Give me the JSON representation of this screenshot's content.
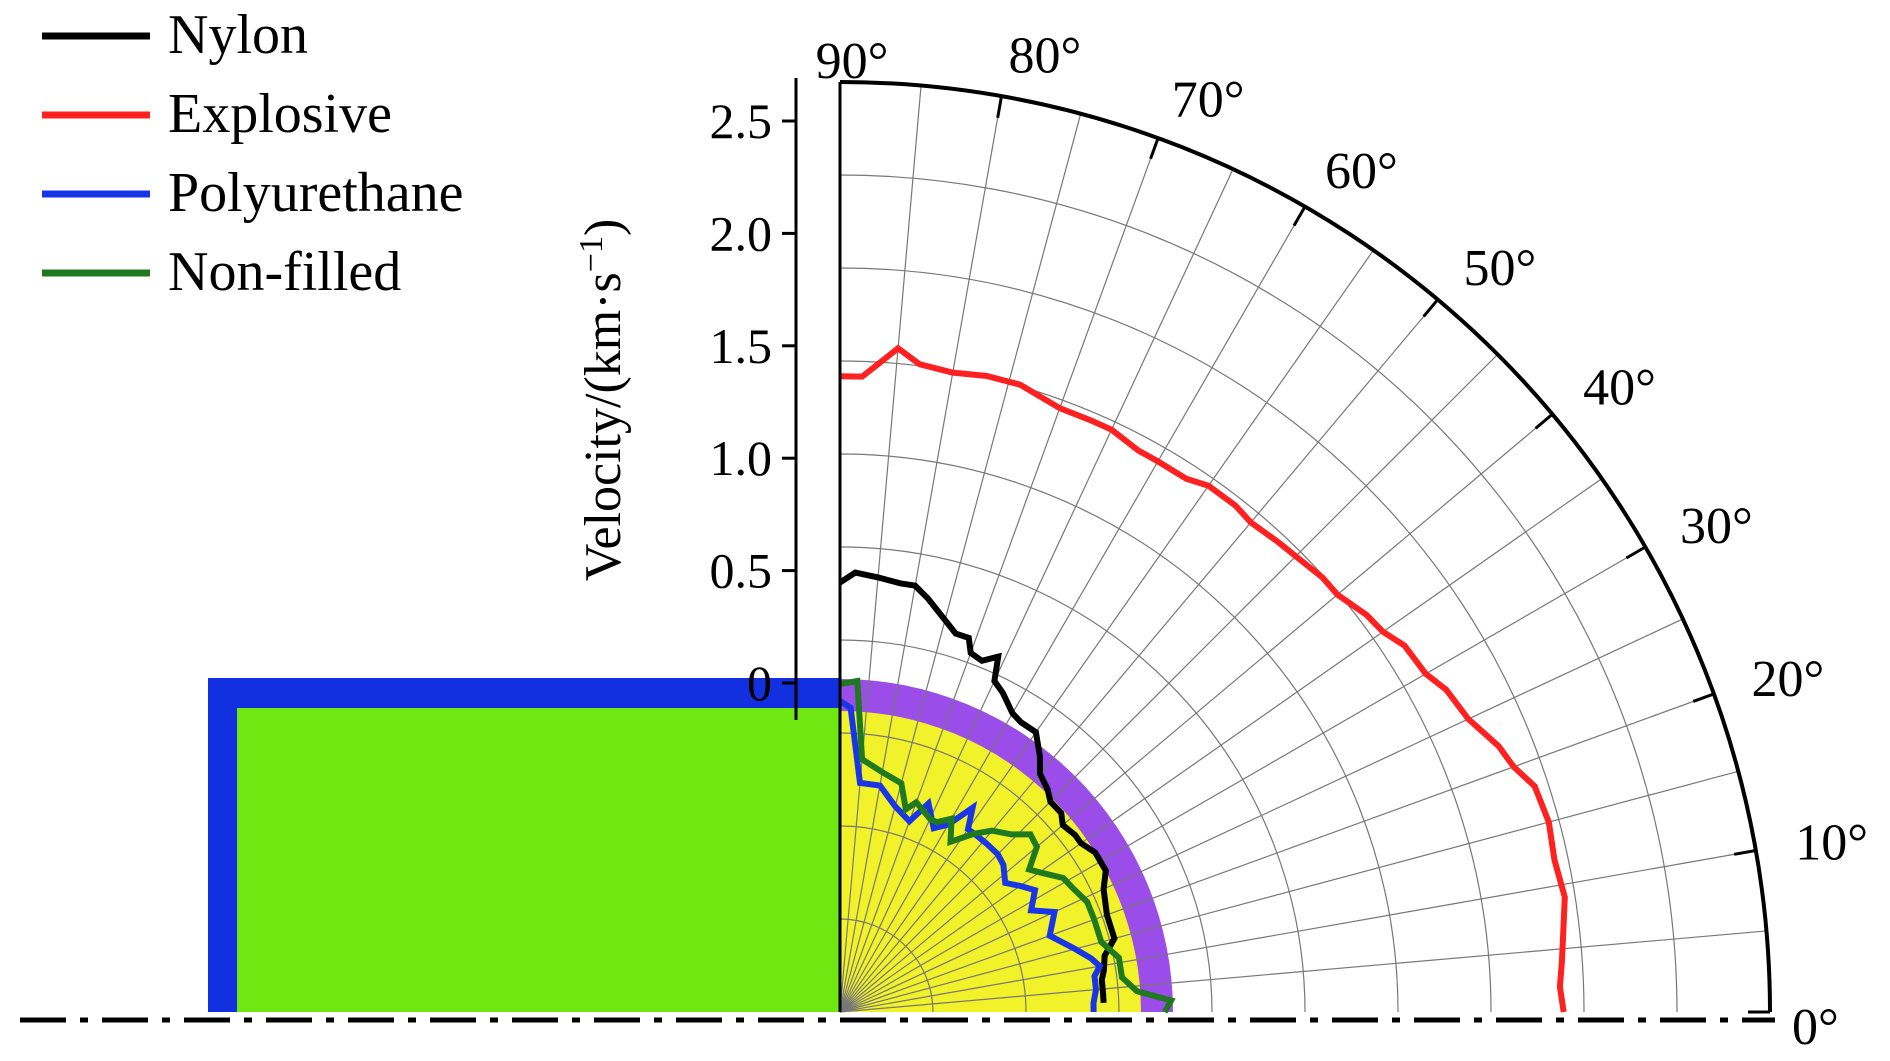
{
  "chart_data": {
    "type": "polar",
    "angle_unit": "deg",
    "angle_range": [
      0,
      90
    ],
    "angle_ticks": [
      "0°",
      "10°",
      "20°",
      "30°",
      "40°",
      "50°",
      "60°",
      "70°",
      "80°",
      "90°"
    ],
    "radial_range": [
      0,
      2.75
    ],
    "radial_ticks": [
      "0",
      "0.5",
      "1.0",
      "1.5",
      "2.0",
      "2.5"
    ],
    "radial_tick_values": [
      0,
      0.5,
      1.0,
      1.5,
      2.0,
      2.5
    ],
    "ylabel": "Velocity/(km·s",
    "ylabel_sup": "−1",
    "ylabel_close": ")",
    "grid": true,
    "legend_position": "top-left",
    "series": [
      {
        "name": "Nylon",
        "color": "#000000",
        "points": [
          [
            90,
            1.27
          ],
          [
            88,
            1.3
          ],
          [
            85,
            1.29
          ],
          [
            82,
            1.28
          ],
          [
            80,
            1.28
          ],
          [
            78,
            1.25
          ],
          [
            75,
            1.2
          ],
          [
            73,
            1.17
          ],
          [
            71,
            1.17
          ],
          [
            70,
            1.13
          ],
          [
            68,
            1.12
          ],
          [
            66,
            1.15
          ],
          [
            65,
            1.08
          ],
          [
            63,
            1.06
          ],
          [
            60,
            1.02
          ],
          [
            58,
            1.01
          ],
          [
            55,
            1.01
          ],
          [
            52,
            0.96
          ],
          [
            50,
            0.92
          ],
          [
            47,
            0.9
          ],
          [
            45,
            0.88
          ],
          [
            42,
            0.88
          ],
          [
            40,
            0.86
          ],
          [
            37,
            0.87
          ],
          [
            35,
            0.87
          ],
          [
            32,
            0.89
          ],
          [
            28,
            0.89
          ],
          [
            25,
            0.86
          ],
          [
            20,
            0.84
          ],
          [
            15,
            0.84
          ],
          [
            12,
            0.8
          ],
          [
            9,
            0.79
          ],
          [
            7,
            0.78
          ],
          [
            4,
            0.78
          ],
          [
            2,
            0.78
          ]
        ]
      },
      {
        "name": "Explosive",
        "color": "#ff2020",
        "points": [
          [
            90,
            1.88
          ],
          [
            88,
            1.88
          ],
          [
            85,
            1.97
          ],
          [
            83,
            1.93
          ],
          [
            80,
            1.92
          ],
          [
            77,
            1.93
          ],
          [
            74,
            1.93
          ],
          [
            70,
            1.9
          ],
          [
            67,
            1.9
          ],
          [
            65,
            1.9
          ],
          [
            62,
            1.88
          ],
          [
            60,
            1.88
          ],
          [
            57,
            1.88
          ],
          [
            55,
            1.9
          ],
          [
            52,
            1.9
          ],
          [
            50,
            1.89
          ],
          [
            47,
            1.9
          ],
          [
            44,
            1.91
          ],
          [
            42,
            1.92
          ],
          [
            40,
            1.92
          ],
          [
            37,
            1.95
          ],
          [
            35,
            1.96
          ],
          [
            33,
            1.99
          ],
          [
            30,
            2.0
          ],
          [
            28,
            2.03
          ],
          [
            25,
            2.05
          ],
          [
            22,
            2.1
          ],
          [
            20,
            2.12
          ],
          [
            18,
            2.16
          ],
          [
            15,
            2.17
          ],
          [
            12,
            2.16
          ],
          [
            9,
            2.17
          ],
          [
            6,
            2.15
          ],
          [
            4,
            2.14
          ],
          [
            2,
            2.13
          ],
          [
            0,
            2.14
          ]
        ]
      },
      {
        "name": "Polyurethane",
        "color": "#1836e8",
        "points": [
          [
            90,
            0.92
          ],
          [
            88,
            0.9
          ],
          [
            85,
            0.68
          ],
          [
            80,
            0.68
          ],
          [
            75,
            0.63
          ],
          [
            70,
            0.6
          ],
          [
            67,
            0.67
          ],
          [
            63,
            0.61
          ],
          [
            60,
            0.64
          ],
          [
            57,
            0.72
          ],
          [
            55,
            0.66
          ],
          [
            52,
            0.66
          ],
          [
            49,
            0.66
          ],
          [
            45,
            0.66
          ],
          [
            42,
            0.65
          ],
          [
            38,
            0.62
          ],
          [
            35,
            0.65
          ],
          [
            32,
            0.68
          ],
          [
            28,
            0.64
          ],
          [
            25,
            0.7
          ],
          [
            20,
            0.66
          ],
          [
            15,
            0.72
          ],
          [
            12,
            0.76
          ],
          [
            10,
            0.78
          ],
          [
            8,
            0.76
          ],
          [
            5,
            0.76
          ],
          [
            2,
            0.75
          ],
          [
            0,
            0.75
          ]
        ]
      },
      {
        "name": "Non-filled",
        "color": "#1f7a1f",
        "points": [
          [
            90,
            0.97
          ],
          [
            87,
            0.98
          ],
          [
            85,
            0.75
          ],
          [
            80,
            0.72
          ],
          [
            75,
            0.7
          ],
          [
            72,
            0.63
          ],
          [
            70,
            0.66
          ],
          [
            65,
            0.63
          ],
          [
            63,
            0.63
          ],
          [
            60,
            0.66
          ],
          [
            57,
            0.6
          ],
          [
            53,
            0.66
          ],
          [
            50,
            0.7
          ],
          [
            46,
            0.73
          ],
          [
            43,
            0.77
          ],
          [
            40,
            0.76
          ],
          [
            37,
            0.7
          ],
          [
            35,
            0.72
          ],
          [
            31,
            0.77
          ],
          [
            28,
            0.78
          ],
          [
            24,
            0.8
          ],
          [
            20,
            0.8
          ],
          [
            15,
            0.8
          ],
          [
            11,
            0.84
          ],
          [
            7,
            0.84
          ],
          [
            4,
            0.88
          ],
          [
            2,
            0.98
          ],
          [
            1,
            0.97
          ],
          [
            0,
            0.96
          ]
        ]
      }
    ],
    "inset": {
      "outer_frame_color": "#1230e0",
      "fill_color": "#6ee810",
      "ring_color": "#9a4de8",
      "core_color": "#f2f22a"
    }
  }
}
